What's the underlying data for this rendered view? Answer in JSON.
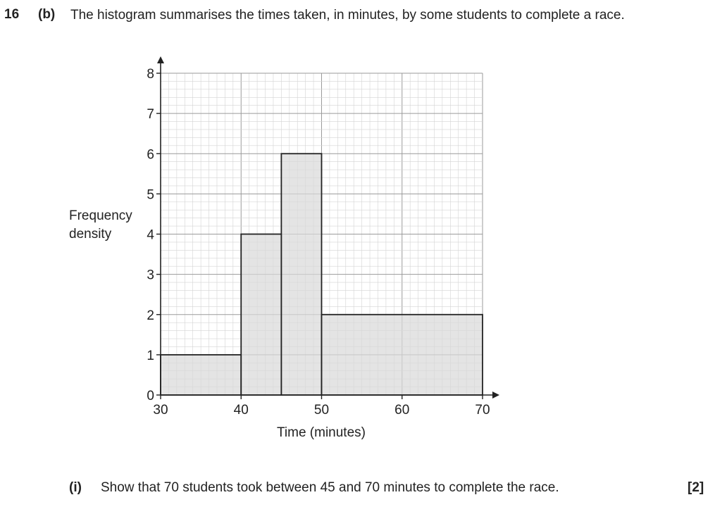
{
  "question": {
    "number": "16",
    "part": "(b)",
    "intro": "The histogram summarises the times taken, in minutes, by some students to complete a race.",
    "subquestion": {
      "label": "(i)",
      "text": "Show that 70 students took between 45 and 70 minutes to complete the race.",
      "marks": "[2]"
    }
  },
  "chart_data": {
    "type": "bar",
    "subtype": "histogram",
    "xlabel": "Time (minutes)",
    "ylabel_lines": [
      "Frequency",
      "density"
    ],
    "xlim": [
      30,
      70
    ],
    "ylim": [
      0,
      8
    ],
    "x_ticks": [
      30,
      40,
      50,
      60,
      70
    ],
    "y_ticks": [
      0,
      1,
      2,
      3,
      4,
      5,
      6,
      7,
      8
    ],
    "grid": true,
    "bins": [
      {
        "start": 30,
        "end": 40,
        "frequency_density": 1
      },
      {
        "start": 40,
        "end": 45,
        "frequency_density": 4
      },
      {
        "start": 45,
        "end": 50,
        "frequency_density": 6
      },
      {
        "start": 50,
        "end": 70,
        "frequency_density": 2
      }
    ],
    "bar_fill": "#d9d9d9",
    "bar_stroke": "#222222",
    "grid_minor_color": "#d4d4d4",
    "grid_major_color": "#9a9a9a"
  }
}
